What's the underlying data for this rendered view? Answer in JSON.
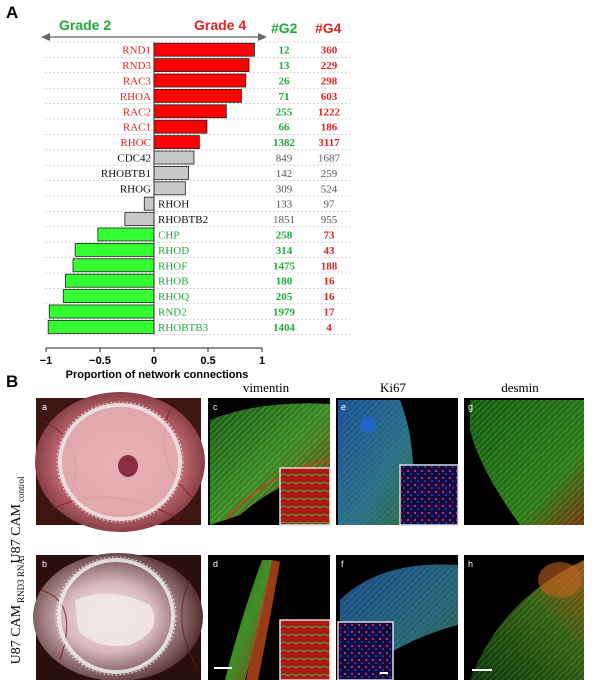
{
  "panel_a": {
    "letter": "A",
    "left_header": "Grade 2",
    "right_header": "Grade 4",
    "col_g2": "#G2",
    "col_g4": "#G4",
    "xlabel": "Proportion of network connections",
    "colors": {
      "grade4": "#e32222",
      "grade2": "#1fa83a",
      "neutral": "#555555",
      "bar_up": "#ff0000",
      "bar_down": "#33ff33",
      "bar_mid": "#c8c8c8"
    }
  },
  "chart_data": {
    "type": "bar",
    "orientation": "horizontal",
    "xlabel": "Proportion of network connections",
    "xlim": [
      -1,
      1
    ],
    "xticks": [
      -1,
      -0.5,
      0,
      0.5,
      1
    ],
    "categories": [
      "RND1",
      "RND3",
      "RAC3",
      "RHOA",
      "RAC2",
      "RAC1",
      "RHOC",
      "CDC42",
      "RHOBTB1",
      "RHOG",
      "RHOH",
      "RHOBTB2",
      "CHP",
      "RHOD",
      "RHOF",
      "RHOB",
      "RHOQ",
      "RND2",
      "RHOBTB3"
    ],
    "values": [
      0.93,
      0.88,
      0.85,
      0.81,
      0.67,
      0.49,
      0.42,
      0.37,
      0.32,
      0.29,
      -0.09,
      -0.27,
      -0.52,
      -0.73,
      -0.75,
      -0.82,
      -0.84,
      -0.97,
      -0.98
    ],
    "groups": [
      "up",
      "up",
      "up",
      "up",
      "up",
      "up",
      "up",
      "mid",
      "mid",
      "mid",
      "mid",
      "mid",
      "down",
      "down",
      "down",
      "down",
      "down",
      "down",
      "down"
    ],
    "g2_counts": [
      "12",
      "13",
      "26",
      "71",
      "255",
      "66",
      "1382",
      "849",
      "142",
      "309",
      "133",
      "1851",
      "258",
      "314",
      "1475",
      "180",
      "205",
      "1979",
      "1404"
    ],
    "g4_counts": [
      "360",
      "229",
      "298",
      "603",
      "1222",
      "186",
      "3117",
      "1687",
      "259",
      "524",
      "97",
      "955",
      "73",
      "43",
      "188",
      "16",
      "16",
      "17",
      "4"
    ]
  },
  "panel_b": {
    "letter": "B",
    "stains": [
      "vimentin",
      "Ki67",
      "desmin"
    ],
    "row1_label": "U87 CAM",
    "row1_sub": "control",
    "row2_label": "U87 CAM",
    "row2_sub": "RND3 RNAi",
    "sub_letters": [
      "a",
      "b",
      "c",
      "d",
      "e",
      "f",
      "g",
      "h"
    ]
  }
}
